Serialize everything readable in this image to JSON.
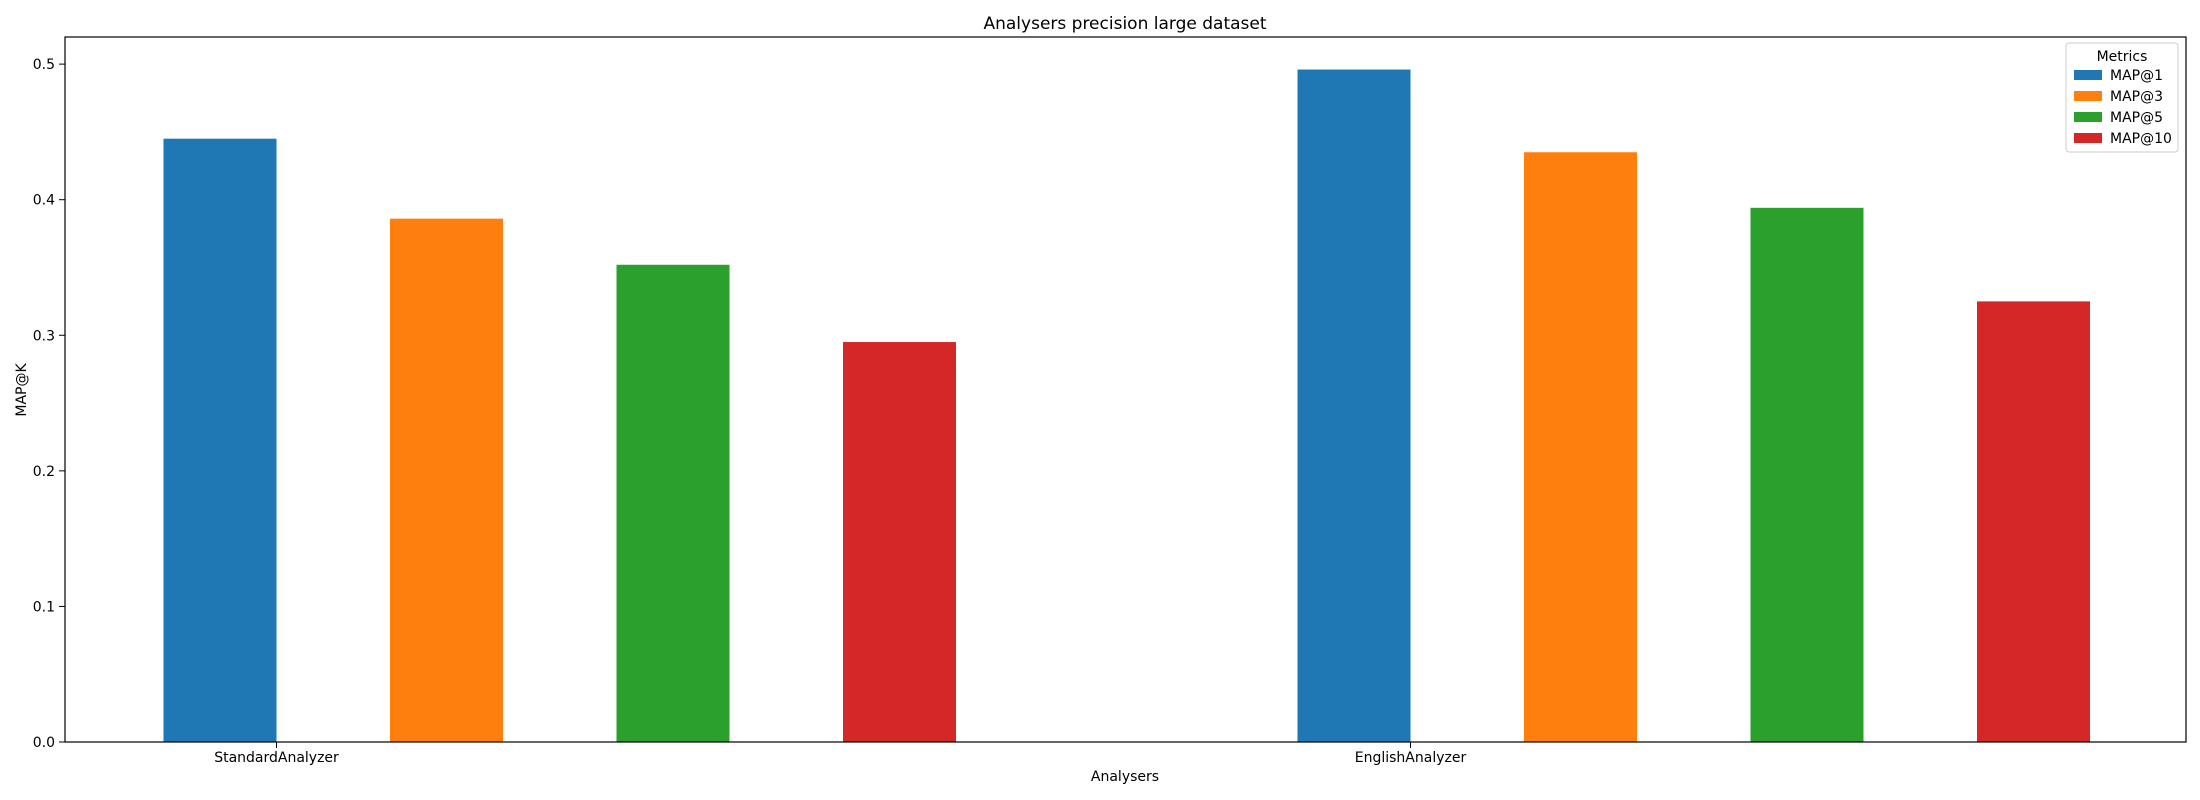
{
  "chart_data": {
    "type": "bar",
    "title": "Analysers precision large dataset",
    "xlabel": "Analysers",
    "ylabel": "MAP@K",
    "categories": [
      "StandardAnalyzer",
      "EnglishAnalyzer"
    ],
    "series": [
      {
        "name": "MAP@1",
        "color": "#1f77b4",
        "values": [
          0.445,
          0.496
        ]
      },
      {
        "name": "MAP@3",
        "color": "#ff7f0e",
        "values": [
          0.386,
          0.435
        ]
      },
      {
        "name": "MAP@5",
        "color": "#2ca02c",
        "values": [
          0.352,
          0.394
        ]
      },
      {
        "name": "MAP@10",
        "color": "#d62728",
        "values": [
          0.295,
          0.325
        ]
      }
    ],
    "ylim": [
      0,
      0.52
    ],
    "yticks": [
      "0.0",
      "0.1",
      "0.2",
      "0.3",
      "0.4",
      "0.5"
    ],
    "legend": {
      "title": "Metrics",
      "placement": "top-right"
    },
    "grid": false
  }
}
